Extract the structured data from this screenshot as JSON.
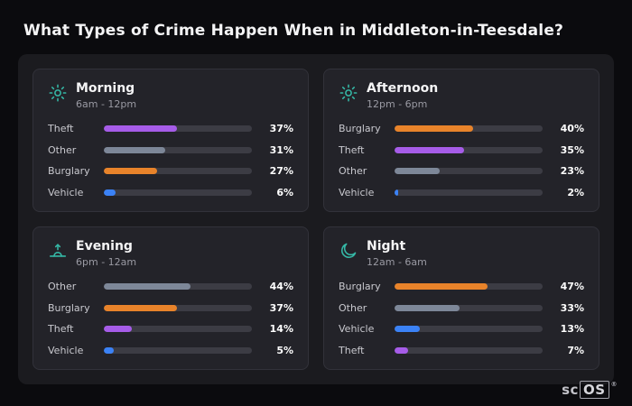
{
  "page_title": "What Types of Crime Happen When in Middleton-in-Teesdale?",
  "brand": {
    "text_left": "sc",
    "text_right": "OS",
    "registered": "®"
  },
  "colors": {
    "Theft": "#a65ce8",
    "Other": "#7d8798",
    "Burglary": "#e8832a",
    "Vehicle": "#3b82f6",
    "accent_icon": "#35b8a6"
  },
  "chart_data": [
    {
      "type": "bar",
      "title": "Morning",
      "subtitle": "6am - 12pm",
      "icon": "sun-icon",
      "categories": [
        "Theft",
        "Other",
        "Burglary",
        "Vehicle"
      ],
      "values": [
        37,
        31,
        27,
        6
      ],
      "value_suffix": "%",
      "xlim": [
        0,
        75
      ]
    },
    {
      "type": "bar",
      "title": "Afternoon",
      "subtitle": "12pm - 6pm",
      "icon": "sun-icon",
      "categories": [
        "Burglary",
        "Theft",
        "Other",
        "Vehicle"
      ],
      "values": [
        40,
        35,
        23,
        2
      ],
      "value_suffix": "%",
      "xlim": [
        0,
        75
      ]
    },
    {
      "type": "bar",
      "title": "Evening",
      "subtitle": "6pm - 12am",
      "icon": "sunset-icon",
      "categories": [
        "Other",
        "Burglary",
        "Theft",
        "Vehicle"
      ],
      "values": [
        44,
        37,
        14,
        5
      ],
      "value_suffix": "%",
      "xlim": [
        0,
        75
      ]
    },
    {
      "type": "bar",
      "title": "Night",
      "subtitle": "12am - 6am",
      "icon": "moon-icon",
      "categories": [
        "Burglary",
        "Other",
        "Vehicle",
        "Theft"
      ],
      "values": [
        47,
        33,
        13,
        7
      ],
      "value_suffix": "%",
      "xlim": [
        0,
        75
      ]
    }
  ]
}
